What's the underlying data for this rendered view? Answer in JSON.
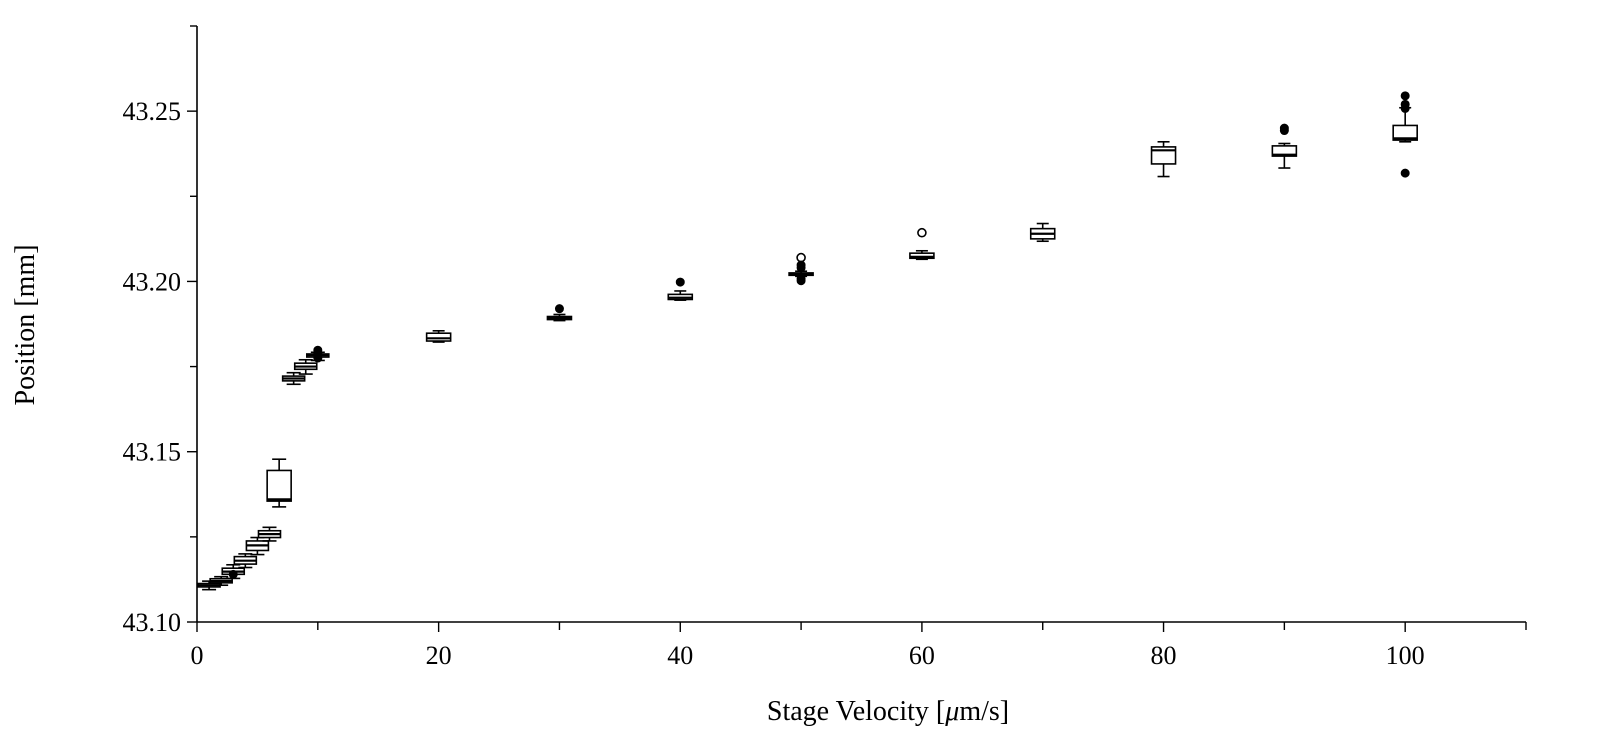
{
  "chart_data": {
    "type": "box",
    "xlabel_pre": "Stage Velocity [",
    "xlabel_mu": "μ",
    "xlabel_post": "m/s]",
    "ylabel": "Position [mm]",
    "xlim": [
      0,
      110
    ],
    "ylim": [
      43.1,
      43.275
    ],
    "x_ticks": [
      0,
      20,
      40,
      60,
      80,
      100
    ],
    "x_minor_ticks": [
      10,
      30,
      50,
      70,
      90,
      110
    ],
    "y_ticks": [
      43.1,
      43.15,
      43.2,
      43.25
    ],
    "y_minor_ticks": [
      43.125,
      43.175,
      43.225,
      43.275
    ],
    "x_tick_labels": [
      "0",
      "20",
      "40",
      "60",
      "80",
      "100"
    ],
    "y_tick_labels": [
      "43.10",
      "43.15",
      "43.20",
      "43.25"
    ],
    "boxes": [
      {
        "x": 1,
        "whisker_low": 43.1095,
        "q1": 43.1103,
        "median": 43.1108,
        "q3": 43.1113,
        "whisker_high": 43.112,
        "outliers": []
      },
      {
        "x": 2,
        "whisker_low": 43.1108,
        "q1": 43.1115,
        "median": 43.112,
        "q3": 43.1127,
        "whisker_high": 43.1133,
        "outliers": []
      },
      {
        "x": 3,
        "whisker_low": 43.1128,
        "q1": 43.114,
        "median": 43.1148,
        "q3": 43.1158,
        "whisker_high": 43.1168,
        "outliers": [
          {
            "y": 43.114,
            "filled": true
          }
        ]
      },
      {
        "x": 4,
        "whisker_low": 43.116,
        "q1": 43.117,
        "median": 43.118,
        "q3": 43.1192,
        "whisker_high": 43.12,
        "outliers": []
      },
      {
        "x": 5,
        "whisker_low": 43.1198,
        "q1": 43.121,
        "median": 43.1225,
        "q3": 43.1238,
        "whisker_high": 43.1248,
        "outliers": []
      },
      {
        "x": 6,
        "whisker_low": 43.1238,
        "q1": 43.1248,
        "median": 43.1258,
        "q3": 43.1268,
        "whisker_high": 43.1278,
        "outliers": []
      },
      {
        "x": 6.8,
        "whisker_low": 43.1338,
        "q1": 43.1355,
        "median": 43.136,
        "q3": 43.1445,
        "whisker_high": 43.1478,
        "outliers": []
      },
      {
        "x": 8,
        "whisker_low": 43.1698,
        "q1": 43.1708,
        "median": 43.1715,
        "q3": 43.1722,
        "whisker_high": 43.1732,
        "outliers": []
      },
      {
        "x": 9,
        "whisker_low": 43.1728,
        "q1": 43.1742,
        "median": 43.175,
        "q3": 43.176,
        "whisker_high": 43.177,
        "outliers": []
      },
      {
        "x": 10,
        "whisker_low": 43.1768,
        "q1": 43.1778,
        "median": 43.1783,
        "q3": 43.1787,
        "whisker_high": 43.1792,
        "outliers": [
          {
            "y": 43.1798,
            "filled": true
          },
          {
            "y": 43.179,
            "filled": true
          },
          {
            "y": 43.1775,
            "filled": true
          }
        ]
      },
      {
        "x": 20,
        "whisker_low": 43.1822,
        "q1": 43.1825,
        "median": 43.1833,
        "q3": 43.1848,
        "whisker_high": 43.1855,
        "outliers": []
      },
      {
        "x": 30,
        "whisker_low": 43.1885,
        "q1": 43.1888,
        "median": 43.1893,
        "q3": 43.1897,
        "whisker_high": 43.1903,
        "outliers": [
          {
            "y": 43.192,
            "filled": true
          }
        ]
      },
      {
        "x": 40,
        "whisker_low": 43.1945,
        "q1": 43.1947,
        "median": 43.1952,
        "q3": 43.1962,
        "whisker_high": 43.1972,
        "outliers": [
          {
            "y": 43.1998,
            "filled": true
          }
        ]
      },
      {
        "x": 50,
        "whisker_low": 43.2015,
        "q1": 43.2018,
        "median": 43.2022,
        "q3": 43.2025,
        "whisker_high": 43.203,
        "outliers": [
          {
            "y": 43.207,
            "filled": false
          },
          {
            "y": 43.2048,
            "filled": true
          },
          {
            "y": 43.204,
            "filled": true
          },
          {
            "y": 43.2008,
            "filled": true
          },
          {
            "y": 43.2002,
            "filled": true
          }
        ]
      },
      {
        "x": 60,
        "whisker_low": 43.2065,
        "q1": 43.2068,
        "median": 43.2072,
        "q3": 43.2083,
        "whisker_high": 43.209,
        "outliers": [
          {
            "y": 43.2143,
            "filled": false
          }
        ]
      },
      {
        "x": 70,
        "whisker_low": 43.2118,
        "q1": 43.2125,
        "median": 43.214,
        "q3": 43.2155,
        "whisker_high": 43.217,
        "outliers": []
      },
      {
        "x": 80,
        "whisker_low": 43.2308,
        "q1": 43.2345,
        "median": 43.2385,
        "q3": 43.2395,
        "whisker_high": 43.241,
        "outliers": []
      },
      {
        "x": 90,
        "whisker_low": 43.2333,
        "q1": 43.2368,
        "median": 43.2372,
        "q3": 43.2398,
        "whisker_high": 43.2405,
        "outliers": [
          {
            "y": 43.245,
            "filled": true
          },
          {
            "y": 43.2443,
            "filled": true
          }
        ]
      },
      {
        "x": 100,
        "whisker_low": 43.241,
        "q1": 43.2415,
        "median": 43.242,
        "q3": 43.2458,
        "whisker_high": 43.251,
        "outliers": [
          {
            "y": 43.2545,
            "filled": true
          },
          {
            "y": 43.252,
            "filled": true
          },
          {
            "y": 43.2508,
            "filled": true
          },
          {
            "y": 43.2318,
            "filled": true
          }
        ]
      }
    ]
  }
}
